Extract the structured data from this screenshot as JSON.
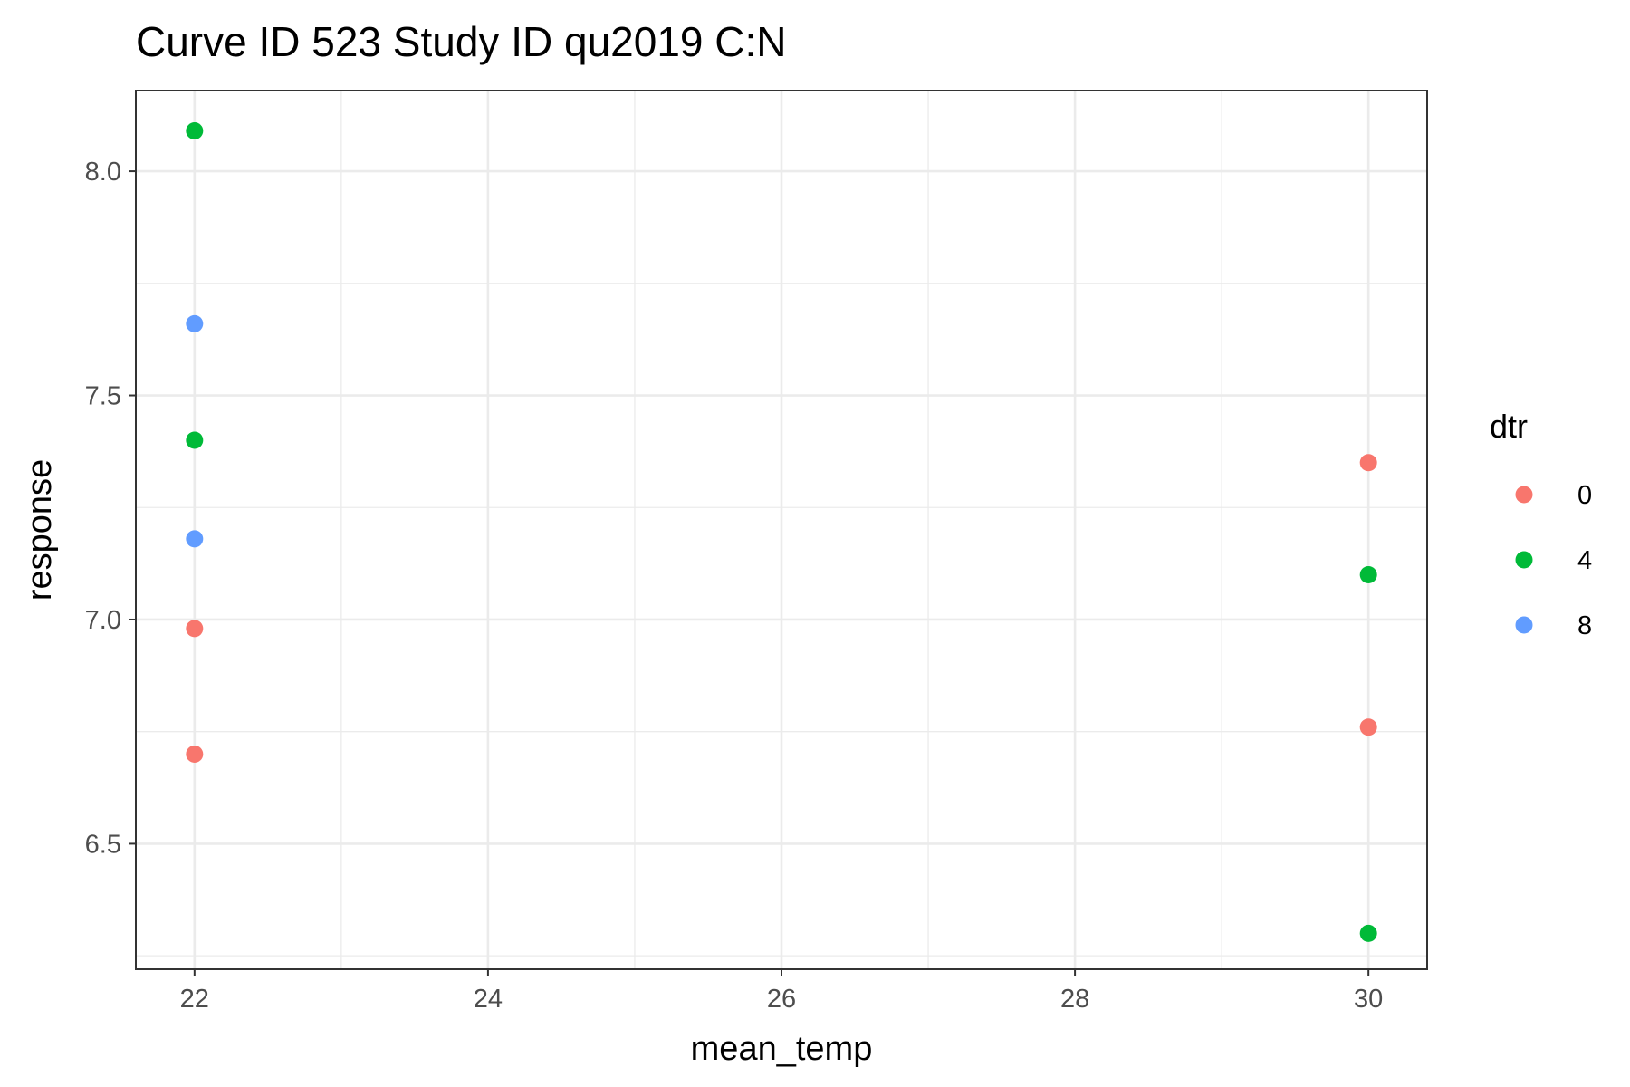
{
  "chart_data": {
    "type": "scatter",
    "title": "Curve ID 523 Study ID qu2019 C:N",
    "xlabel": "mean_temp",
    "ylabel": "response",
    "xlim": [
      21.6,
      30.4
    ],
    "ylim": [
      6.22,
      8.18
    ],
    "x_ticks": [
      22,
      24,
      26,
      28,
      30
    ],
    "x_tick_labels": [
      "22",
      "24",
      "26",
      "28",
      "30"
    ],
    "x_minor": [
      23,
      25,
      27,
      29
    ],
    "y_ticks": [
      6.5,
      7.0,
      7.5,
      8.0
    ],
    "y_tick_labels": [
      "6.5",
      "7.0",
      "7.5",
      "8.0"
    ],
    "y_minor": [
      6.25,
      6.75,
      7.25,
      7.75
    ],
    "grid": true,
    "legend": {
      "title": "dtr",
      "placement": "right"
    },
    "series": [
      {
        "name": "0",
        "color": "#F8766D",
        "points": [
          {
            "x": 22,
            "y": 6.98
          },
          {
            "x": 22,
            "y": 6.7
          },
          {
            "x": 30,
            "y": 7.35
          },
          {
            "x": 30,
            "y": 6.76
          }
        ]
      },
      {
        "name": "4",
        "color": "#00BA38",
        "points": [
          {
            "x": 22,
            "y": 8.09
          },
          {
            "x": 22,
            "y": 7.4
          },
          {
            "x": 30,
            "y": 7.1
          },
          {
            "x": 30,
            "y": 6.3
          }
        ]
      },
      {
        "name": "8",
        "color": "#619CFF",
        "points": [
          {
            "x": 22,
            "y": 7.66
          },
          {
            "x": 22,
            "y": 7.18
          }
        ]
      }
    ]
  }
}
